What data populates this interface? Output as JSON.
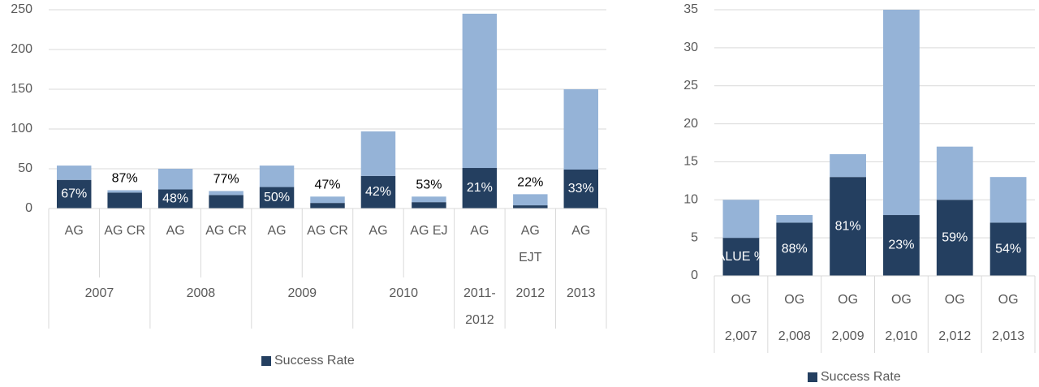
{
  "chart_data": [
    {
      "type": "bar",
      "stacked": true,
      "groups": [
        {
          "label": "2007",
          "categories": [
            "AG",
            "AG CR"
          ]
        },
        {
          "label": "2008",
          "categories": [
            "AG",
            "AG CR"
          ]
        },
        {
          "label": "2009",
          "categories": [
            "AG",
            "AG CR"
          ]
        },
        {
          "label": "2010",
          "categories": [
            "AG",
            "AG EJ"
          ]
        },
        {
          "label": "2011-2012",
          "categories": [
            "AG"
          ]
        },
        {
          "label": "2012",
          "categories": [
            "AG EJT"
          ]
        },
        {
          "label": "2013",
          "categories": [
            "AG"
          ]
        }
      ],
      "series": [
        {
          "name": "Success Rate",
          "color": "#243f60",
          "values": [
            36,
            20,
            24,
            17,
            27,
            7,
            41,
            8,
            51,
            4,
            49
          ],
          "data_labels": [
            "67%",
            "87%",
            "48%",
            "77%",
            "50%",
            "47%",
            "42%",
            "53%",
            "21%",
            "22%",
            "33%"
          ]
        },
        {
          "color": "#95b3d7",
          "values": [
            18,
            3,
            26,
            5,
            27,
            8,
            56,
            7,
            194,
            14,
            101
          ]
        }
      ],
      "ylim": [
        0,
        250
      ],
      "yticks": [
        0,
        50,
        100,
        150,
        200,
        250
      ],
      "grid": true,
      "legend": "bottom"
    },
    {
      "type": "bar",
      "stacked": true,
      "groups": [
        {
          "label": "2,007",
          "categories": [
            "OG"
          ]
        },
        {
          "label": "2,008",
          "categories": [
            "OG"
          ]
        },
        {
          "label": "2,009",
          "categories": [
            "OG"
          ]
        },
        {
          "label": "2,010",
          "categories": [
            "OG"
          ]
        },
        {
          "label": "2,012",
          "categories": [
            "OG"
          ]
        },
        {
          "label": "2,013",
          "categories": [
            "OG"
          ]
        }
      ],
      "series": [
        {
          "name": "Success Rate",
          "color": "#243f60",
          "values": [
            5,
            7,
            13,
            8,
            10,
            7
          ],
          "data_labels": [
            "ALUE %",
            "88%",
            "81%",
            "23%",
            "59%",
            "54%"
          ]
        },
        {
          "color": "#95b3d7",
          "values": [
            5,
            1,
            3,
            27,
            7,
            6
          ]
        }
      ],
      "ylim": [
        0,
        35
      ],
      "yticks": [
        0,
        5,
        10,
        15,
        20,
        25,
        30,
        35
      ],
      "grid": true,
      "legend": "bottom"
    }
  ]
}
